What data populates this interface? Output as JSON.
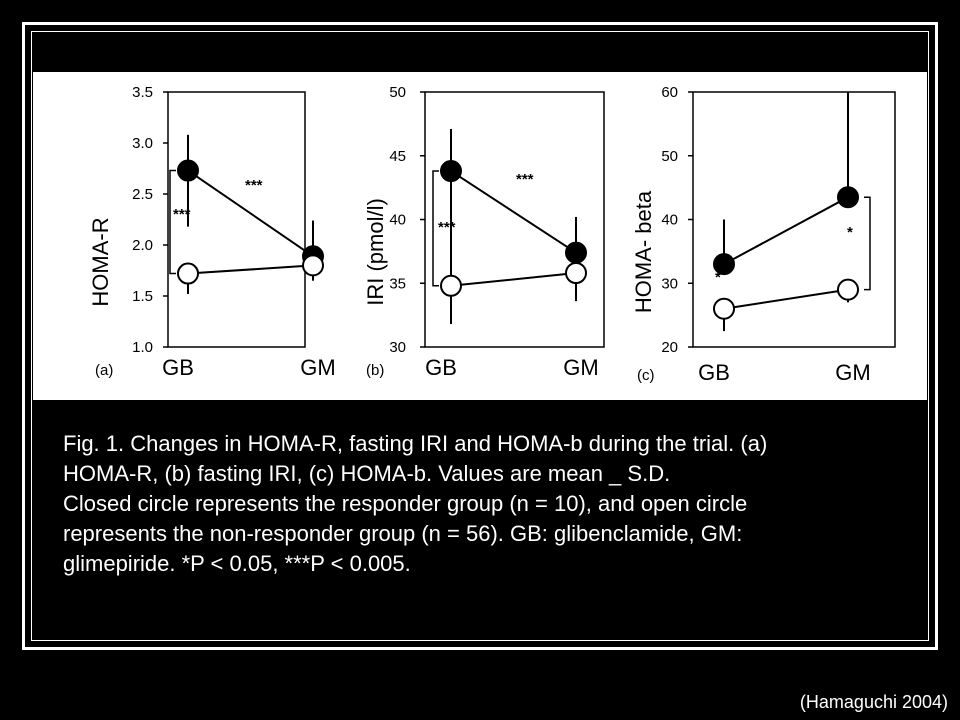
{
  "chart_data": [
    {
      "type": "line",
      "panel_label": "(a)",
      "ylabel": "HOMA-R",
      "categories": [
        "GB",
        "GM"
      ],
      "yticks": [
        "3.5",
        "3.0",
        "2.5",
        "2.0",
        "1.5",
        "1.0"
      ],
      "ylim": [
        1.0,
        3.5
      ],
      "series": [
        {
          "marker": "filled",
          "values": [
            2.73,
            1.89
          ],
          "err_up": [
            0.35,
            0.35
          ],
          "err_down": [
            0.55,
            0.1
          ]
        },
        {
          "marker": "open",
          "values": [
            1.72,
            1.8
          ],
          "err_up": [
            0.0,
            0.0
          ],
          "err_down": [
            0.2,
            0.15
          ]
        }
      ],
      "annotations": [
        "***",
        "***"
      ],
      "grid": false
    },
    {
      "type": "line",
      "panel_label": "(b)",
      "ylabel": "IRI (pmol/l)",
      "categories": [
        "GB",
        "GM"
      ],
      "yticks": [
        "50",
        "45",
        "40",
        "35",
        "30"
      ],
      "ylim": [
        30,
        50
      ],
      "series": [
        {
          "marker": "filled",
          "values": [
            43.8,
            37.4
          ],
          "err_up": [
            3.3,
            2.8
          ],
          "err_down": [
            9.8,
            2.0
          ]
        },
        {
          "marker": "open",
          "values": [
            34.8,
            35.8
          ],
          "err_up": [
            0.0,
            0.0
          ],
          "err_down": [
            3.0,
            2.2
          ]
        }
      ],
      "annotations": [
        "***",
        "***"
      ],
      "grid": false
    },
    {
      "type": "line",
      "panel_label": "(c)",
      "ylabel": "HOMA- beta",
      "categories": [
        "GB",
        "GM"
      ],
      "yticks": [
        "60",
        "50",
        "40",
        "30",
        "20"
      ],
      "ylim": [
        20,
        60
      ],
      "series": [
        {
          "marker": "filled",
          "values": [
            33.0,
            43.5
          ],
          "err_up": [
            7.0,
            16.5
          ],
          "err_down": [
            0.0,
            0.0
          ]
        },
        {
          "marker": "open",
          "values": [
            26.0,
            29.0
          ],
          "err_up": [
            0.0,
            0.0
          ],
          "err_down": [
            3.5,
            2.0
          ]
        }
      ],
      "annotations": [
        "*",
        "*"
      ],
      "grid": false
    }
  ],
  "caption": {
    "line1": "Fig. 1. Changes in HOMA-R, fasting IRI and HOMA-b during the trial. (a)",
    "line2": "HOMA-R, (b) fasting IRI, (c) HOMA-b. Values are mean _ S.D.",
    "line3": "Closed circle represents the responder group (n = 10), and open circle",
    "line4": "represents the non-responder group (n = 56). GB: glibenclamide, GM:",
    "line5": "glimepiride. *P < 0.05, ***P < 0.005."
  },
  "citation": "(Hamaguchi 2004)",
  "colors": {
    "background": "#000000",
    "panel": "#ffffff",
    "ink": "#000000",
    "text": "#ffffff"
  }
}
